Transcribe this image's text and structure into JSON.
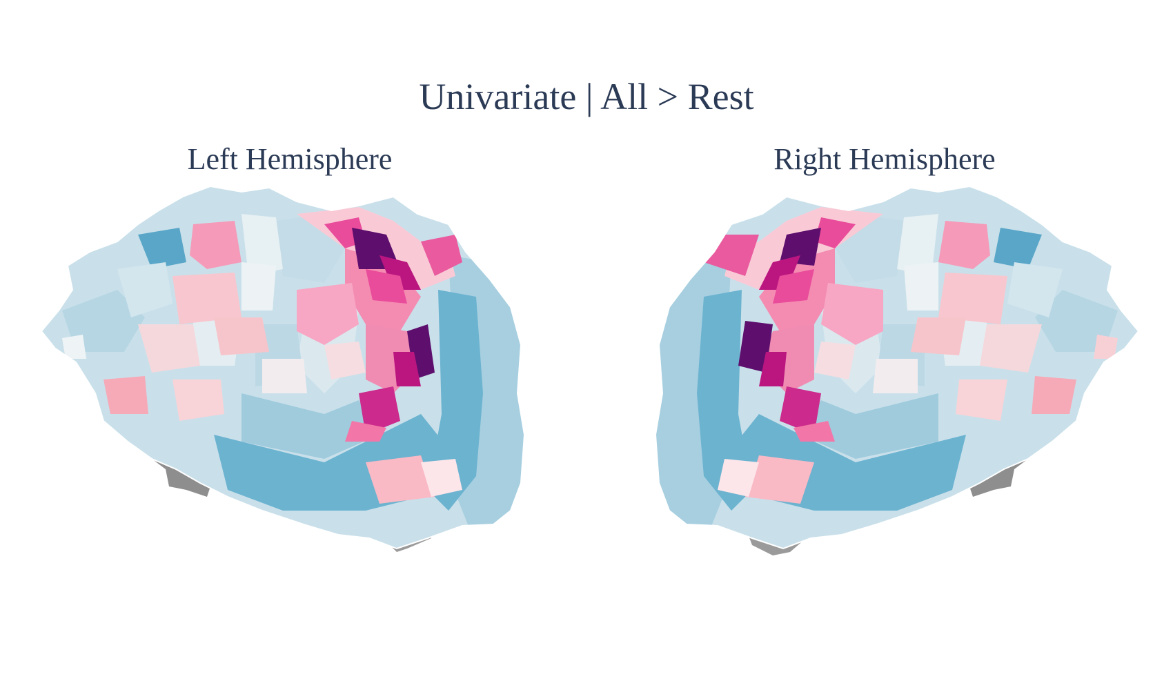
{
  "figure": {
    "title": "Univariate | All > Rest"
  },
  "panels": [
    {
      "id": "left",
      "title": "Left Hemisphere"
    },
    {
      "id": "right",
      "title": "Right Hemisphere"
    }
  ],
  "colors": {
    "background": "#ffffff",
    "text": "#2b3a55",
    "medial_wall": "#8e8e8e",
    "scale_negative_strong": "#5aa6c8",
    "scale_negative": "#9fcbdd",
    "scale_negative_weak": "#c9e0ea",
    "scale_neutral": "#f4ecee",
    "scale_positive_weak": "#f8c6ce",
    "scale_positive": "#f28aaf",
    "scale_positive_strong": "#cc2a8c",
    "scale_peak": "#5e0f6e"
  }
}
